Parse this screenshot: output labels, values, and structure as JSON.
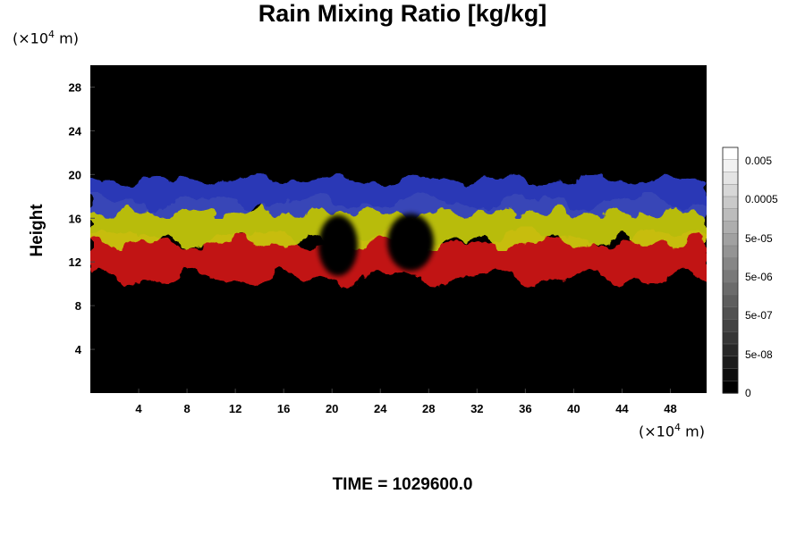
{
  "chart_data": {
    "type": "heatmap",
    "title": "Rain Mixing Ratio [kg/kg]",
    "ylabel": "Height",
    "xlabel": "",
    "x_unit": {
      "prefix": "(×10",
      "exponent": "4",
      "suffix": " m)"
    },
    "y_unit": {
      "prefix": "(×10",
      "exponent": "4",
      "suffix": " m)"
    },
    "xlim": [
      0,
      51
    ],
    "ylim": [
      0,
      30
    ],
    "xticks": [
      4,
      8,
      12,
      16,
      20,
      24,
      28,
      32,
      36,
      40,
      44,
      48
    ],
    "yticks": [
      4,
      8,
      12,
      16,
      20,
      24,
      28
    ],
    "layers": [
      {
        "name": "red",
        "color": "#d21212",
        "y_range": [
          10.5,
          14.2
        ]
      },
      {
        "name": "yellow",
        "color": "#c8cc10",
        "y_range": [
          13.8,
          17.5
        ]
      },
      {
        "name": "blue",
        "color": "#2f3cc6",
        "y_range": [
          16.5,
          19.5
        ]
      }
    ],
    "colorbar": {
      "labels": [
        "0.005",
        "0.0005",
        "5e-05",
        "5e-06",
        "5e-07",
        "5e-08",
        "0"
      ],
      "levels": 20,
      "colors": {
        "low": "#000000",
        "high": "#ffffff"
      }
    },
    "background": "#000000",
    "grid": false
  },
  "footer": {
    "time_text": "TIME = 1029600.0"
  }
}
